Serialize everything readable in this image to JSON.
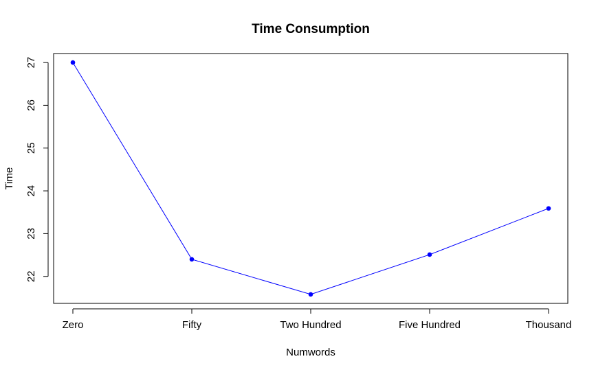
{
  "chart_data": {
    "type": "line",
    "title": "Time Consumption",
    "xlabel": "Numwords",
    "ylabel": "Time",
    "categories": [
      "Zero",
      "Fifty",
      "Two Hundred",
      "Five Hundred",
      "Thousand"
    ],
    "series": [
      {
        "values": [
          27.0,
          22.4,
          21.58,
          22.51,
          23.59
        ]
      }
    ],
    "yticks": [
      22,
      23,
      24,
      25,
      26,
      27
    ],
    "ylim": [
      21.37,
      27.21
    ],
    "grid": false,
    "legend": "none",
    "line_color": "#0000ff",
    "marker_color": "#0000ff",
    "axis_color": "#000000"
  }
}
